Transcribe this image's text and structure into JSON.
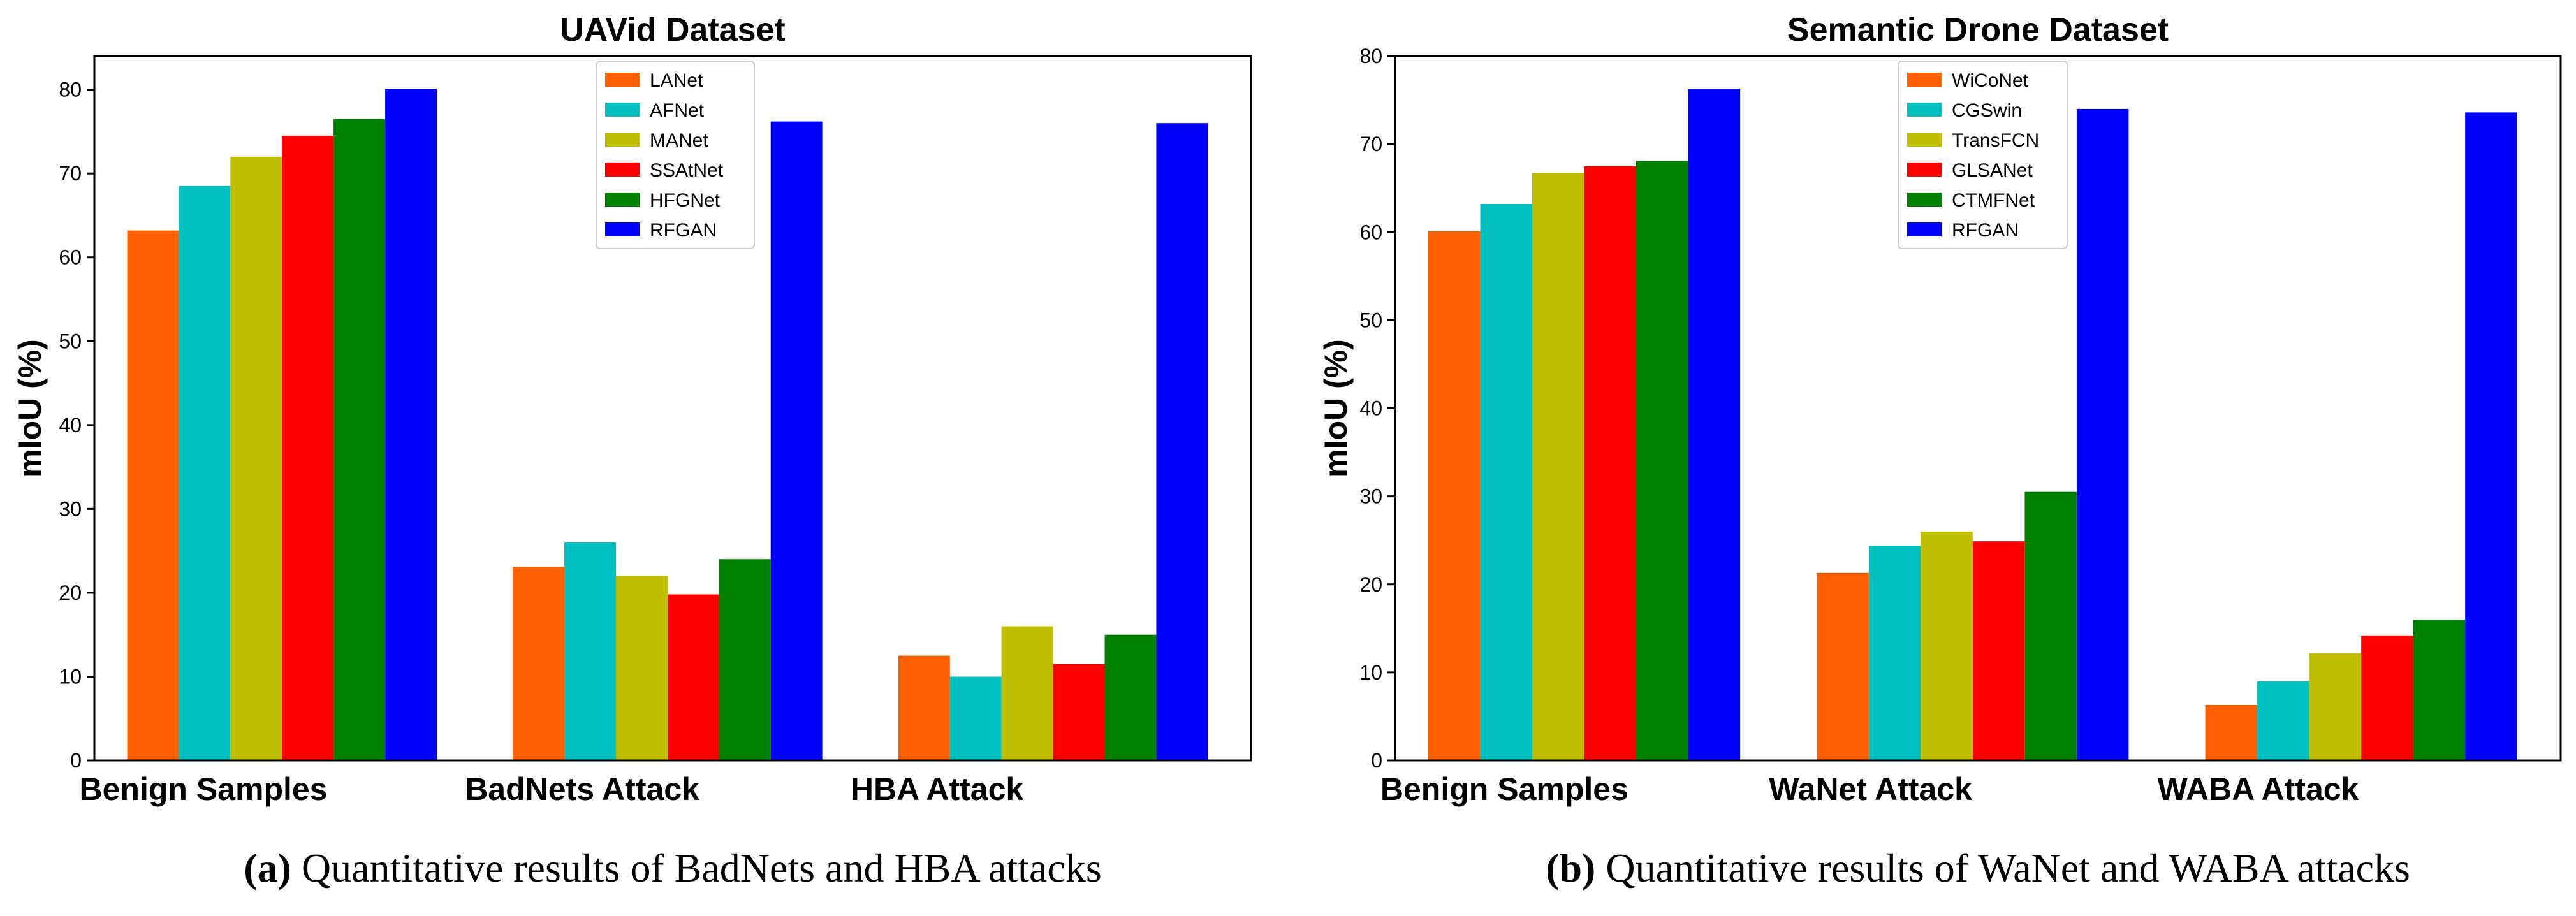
{
  "chart_data": [
    {
      "type": "bar",
      "title": "UAVid Dataset",
      "xlabel": "",
      "ylabel": "mIoU (%)",
      "ylim": [
        0,
        84
      ],
      "yticks": [
        0,
        10,
        20,
        30,
        40,
        50,
        60,
        70,
        80
      ],
      "categories": [
        "Benign Samples",
        "BadNets Attack",
        "HBA Attack"
      ],
      "legend_position": "top-center",
      "series": [
        {
          "name": "LANet",
          "color": "#ff6000",
          "values": [
            63.2,
            23.1,
            12.5
          ]
        },
        {
          "name": "AFNet",
          "color": "#00c0c0",
          "values": [
            68.5,
            26.0,
            10.0
          ]
        },
        {
          "name": "MANet",
          "color": "#bfbf00",
          "values": [
            72.0,
            22.0,
            16.0
          ]
        },
        {
          "name": "SSAtNet",
          "color": "#ff0000",
          "values": [
            74.5,
            19.8,
            11.5
          ]
        },
        {
          "name": "HFGNet",
          "color": "#008000",
          "values": [
            76.5,
            24.0,
            15.0
          ]
        },
        {
          "name": "RFGAN",
          "color": "#0000ff",
          "values": [
            80.1,
            76.2,
            76.0
          ]
        }
      ],
      "caption_letter": "(a)",
      "caption_text": " Quantitative results of BadNets and HBA attacks"
    },
    {
      "type": "bar",
      "title": "Semantic Drone Dataset",
      "xlabel": "",
      "ylabel": "mIoU (%)",
      "ylim": [
        0,
        80
      ],
      "yticks": [
        0,
        10,
        20,
        30,
        40,
        50,
        60,
        70,
        80
      ],
      "categories": [
        "Benign Samples",
        "WaNet Attack",
        "WABA Attack"
      ],
      "legend_position": "top-center",
      "series": [
        {
          "name": "WiCoNet",
          "color": "#ff6000",
          "values": [
            60.1,
            21.3,
            6.3
          ]
        },
        {
          "name": "CGSwin",
          "color": "#00c0c0",
          "values": [
            63.2,
            24.4,
            9.0
          ]
        },
        {
          "name": "TransFCN",
          "color": "#bfbf00",
          "values": [
            66.7,
            26.0,
            12.2
          ]
        },
        {
          "name": "GLSANet",
          "color": "#ff0000",
          "values": [
            67.5,
            24.9,
            14.2
          ]
        },
        {
          "name": "CTMFNet",
          "color": "#008000",
          "values": [
            68.1,
            30.5,
            16.0
          ]
        },
        {
          "name": "RFGAN",
          "color": "#0000ff",
          "values": [
            76.3,
            74.0,
            73.6
          ]
        }
      ],
      "caption_letter": "(b)",
      "caption_text": " Quantitative results of WaNet and WABA attacks"
    }
  ]
}
